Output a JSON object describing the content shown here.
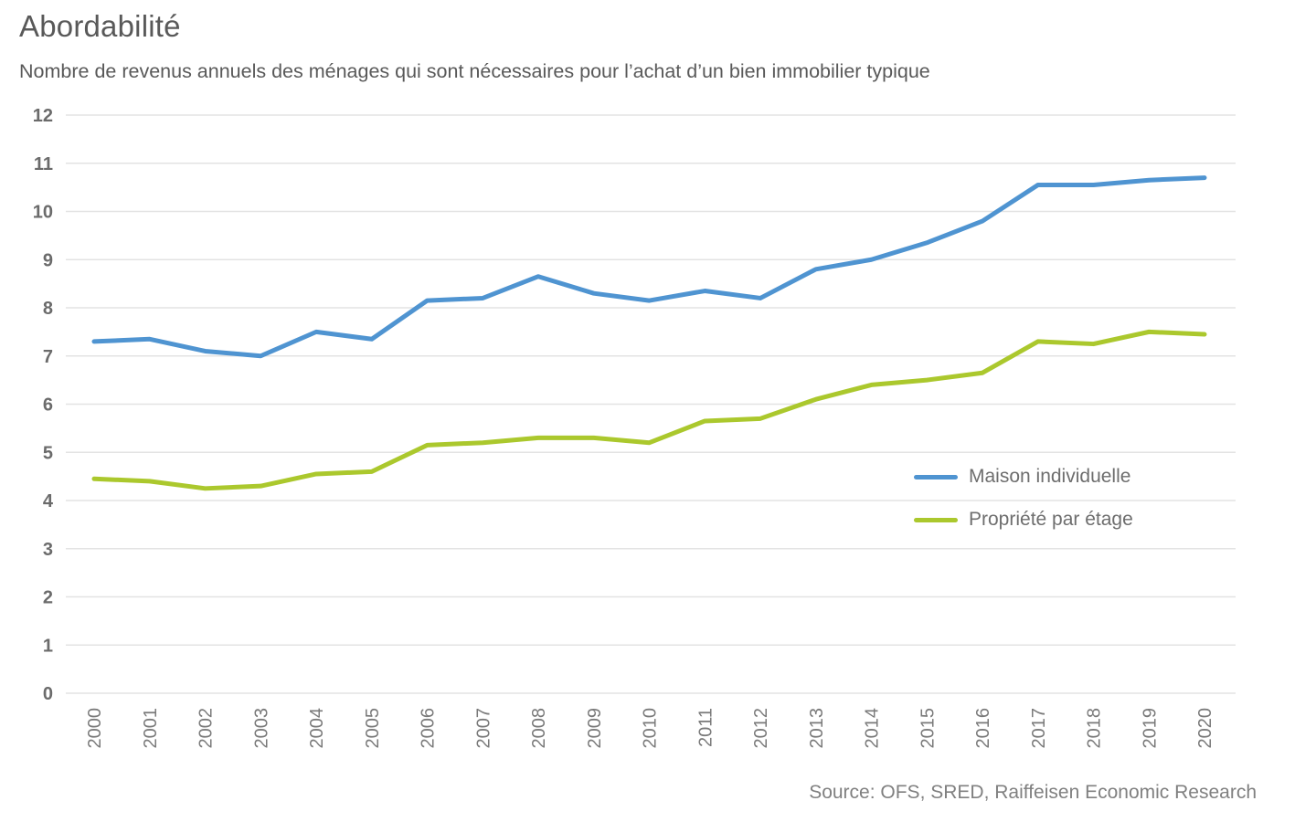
{
  "colors": {
    "grid": "#e3e3e3",
    "axis_label": "#6b6b6b",
    "title_text": "#595959",
    "legend_text": "#6e6e6e",
    "source_text": "#808080"
  },
  "chart_data": {
    "type": "line",
    "title": "Abordabilité",
    "subtitle": "Nombre de revenus annuels des ménages qui sont nécessaires pour l’achat d’un bien immobilier typique",
    "source": "Source: OFS, SRED, Raiffeisen Economic Research",
    "x": [
      2000,
      2001,
      2002,
      2003,
      2004,
      2005,
      2006,
      2007,
      2008,
      2009,
      2010,
      2011,
      2012,
      2013,
      2014,
      2015,
      2016,
      2017,
      2018,
      2019,
      2020
    ],
    "series": [
      {
        "name": "Maison individuelle",
        "color": "#4f94d1",
        "values": [
          7.3,
          7.35,
          7.1,
          7.0,
          7.5,
          7.35,
          8.15,
          8.2,
          8.65,
          8.3,
          8.15,
          8.35,
          8.2,
          8.8,
          9.0,
          9.35,
          9.8,
          10.55,
          10.55,
          10.65,
          10.7
        ]
      },
      {
        "name": "Propriété par étage",
        "color": "#abc82d",
        "values": [
          4.45,
          4.4,
          4.25,
          4.3,
          4.55,
          4.6,
          5.15,
          5.2,
          5.3,
          5.3,
          5.2,
          5.65,
          5.7,
          6.1,
          6.4,
          6.5,
          6.65,
          7.3,
          7.25,
          7.5,
          7.45
        ]
      }
    ],
    "ylim": [
      0,
      12
    ],
    "ytick_step": 1,
    "grid": true,
    "legend_position": "center-right"
  }
}
